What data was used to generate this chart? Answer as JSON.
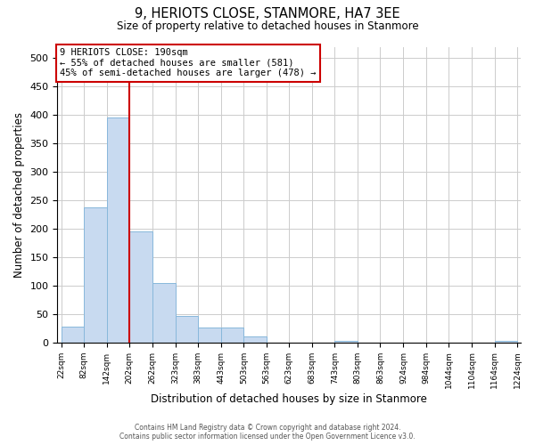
{
  "title": "9, HERIOTS CLOSE, STANMORE, HA7 3EE",
  "subtitle": "Size of property relative to detached houses in Stanmore",
  "xlabel": "Distribution of detached houses by size in Stanmore",
  "ylabel": "Number of detached properties",
  "bar_color": "#c8daf0",
  "bar_edge_color": "#88b8db",
  "property_line_color": "#cc0000",
  "annotation_text_line1": "9 HERIOTS CLOSE: 190sqm",
  "annotation_text_line2": "← 55% of detached houses are smaller (581)",
  "annotation_text_line3": "45% of semi-detached houses are larger (478) →",
  "bin_edges": [
    22,
    82,
    142,
    202,
    262,
    323,
    383,
    443,
    503,
    563,
    623,
    683,
    743,
    803,
    863,
    924,
    984,
    1044,
    1104,
    1164,
    1224
  ],
  "bin_labels": [
    "22sqm",
    "82sqm",
    "142sqm",
    "202sqm",
    "262sqm",
    "323sqm",
    "383sqm",
    "443sqm",
    "503sqm",
    "563sqm",
    "623sqm",
    "683sqm",
    "743sqm",
    "803sqm",
    "863sqm",
    "924sqm",
    "984sqm",
    "1044sqm",
    "1104sqm",
    "1164sqm",
    "1224sqm"
  ],
  "bar_heights": [
    28,
    237,
    396,
    196,
    104,
    47,
    26,
    26,
    11,
    0,
    0,
    0,
    3,
    0,
    0,
    0,
    0,
    0,
    0,
    3
  ],
  "ylim": [
    0,
    520
  ],
  "yticks": [
    0,
    50,
    100,
    150,
    200,
    250,
    300,
    350,
    400,
    450,
    500
  ],
  "footer_line1": "Contains HM Land Registry data © Crown copyright and database right 2024.",
  "footer_line2": "Contains public sector information licensed under the Open Government Licence v3.0.",
  "background_color": "#ffffff",
  "grid_color": "#cccccc",
  "annotation_box_color": "#cc0000",
  "property_line_x": 202
}
